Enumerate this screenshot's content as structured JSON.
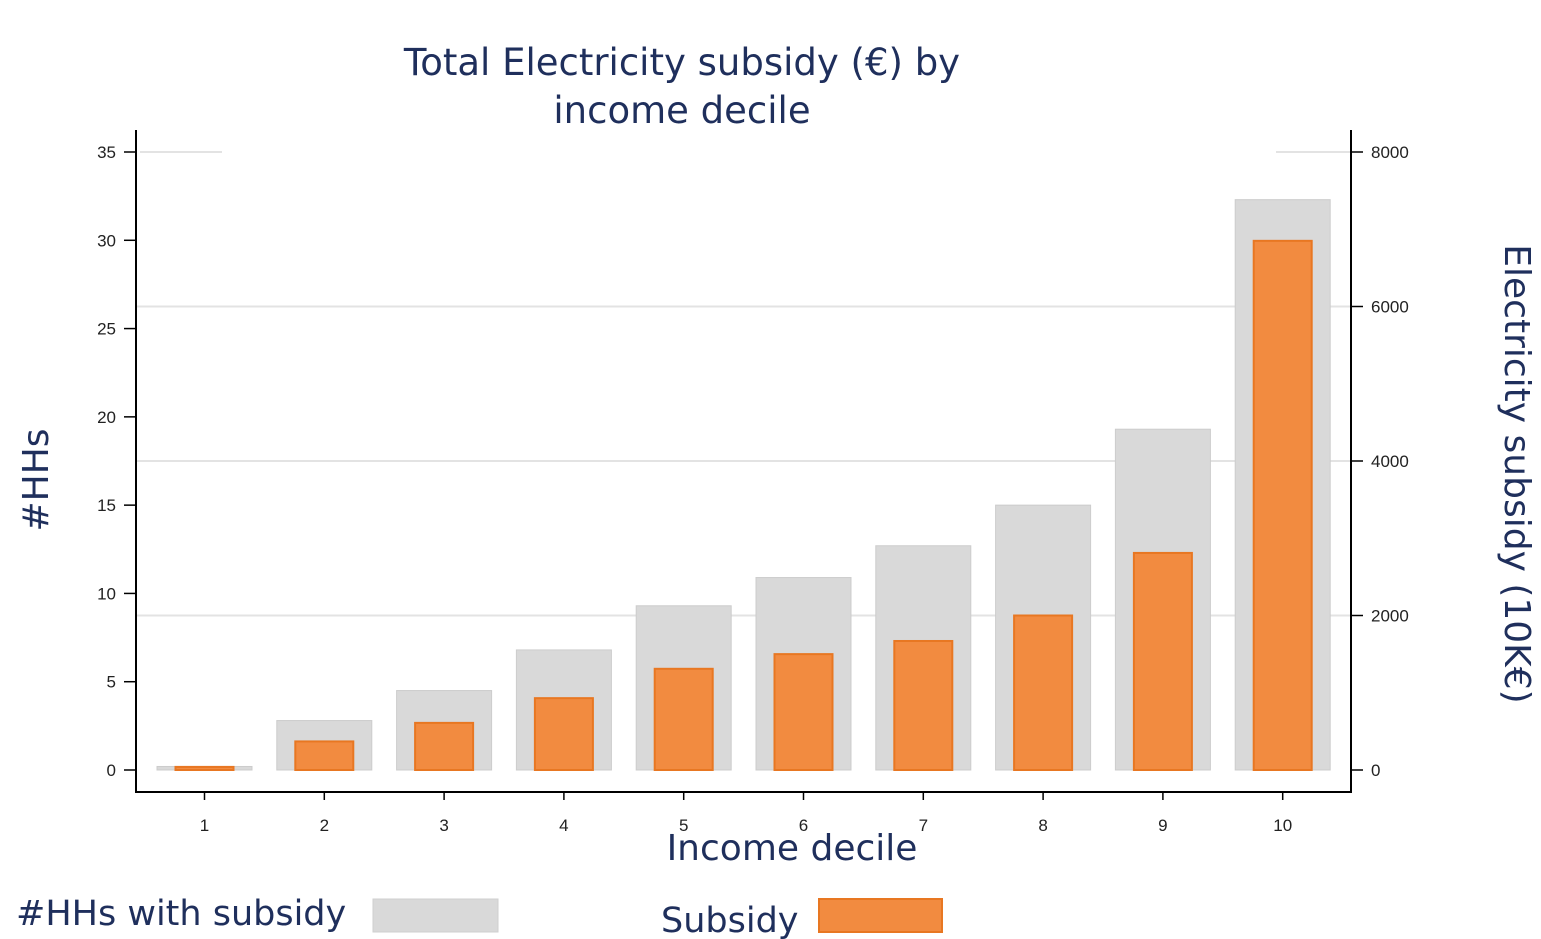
{
  "chart_data": {
    "type": "bar",
    "title_lines": [
      "Total Electricity subsidy (€) by",
      "income decile"
    ],
    "xlabel": "Income decile",
    "ylabel_left": "#HHs",
    "ylabel_right": "Electricity subsidy (10K€)",
    "categories": [
      "1",
      "2",
      "3",
      "4",
      "5",
      "6",
      "7",
      "8",
      "9",
      "10"
    ],
    "left_ticks": [
      "0",
      "5",
      "10",
      "15",
      "20",
      "25",
      "30",
      "35"
    ],
    "right_ticks": [
      "0",
      "2000",
      "4000",
      "6000",
      "8000"
    ],
    "ylim_left": [
      0,
      35
    ],
    "ylim_right": [
      0,
      8000
    ],
    "grid": true,
    "legend_position": "bottom",
    "series": [
      {
        "name": "#HHs with subsidy",
        "axis": "left",
        "color": "#d9d9d9",
        "values": [
          0.2,
          2.8,
          4.5,
          6.8,
          9.3,
          10.9,
          12.7,
          15.0,
          19.3,
          32.3
        ]
      },
      {
        "name": "Subsidy",
        "axis": "right",
        "color": "#f28b40",
        "values": [
          40,
          370,
          610,
          930,
          1310,
          1500,
          1670,
          2000,
          2810,
          6850
        ]
      }
    ]
  }
}
